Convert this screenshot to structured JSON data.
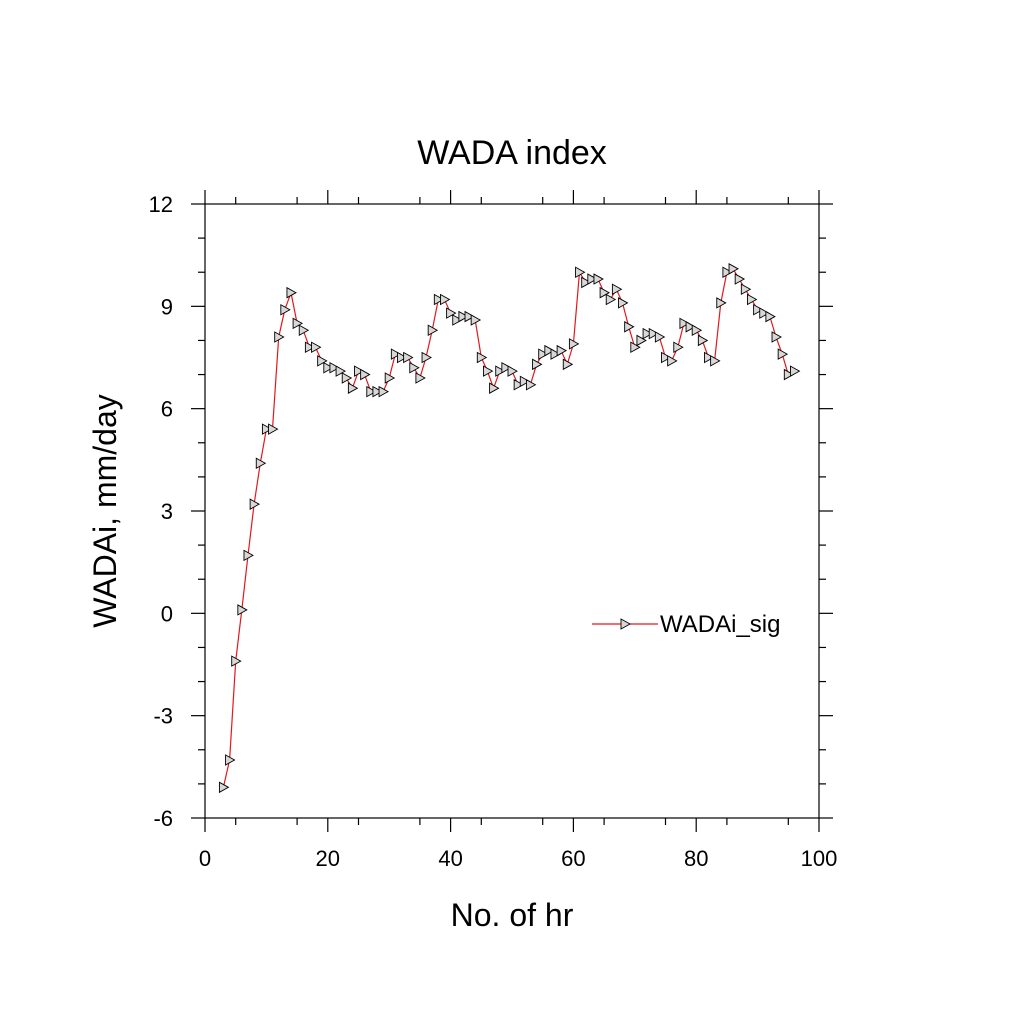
{
  "chart_data": {
    "type": "line",
    "title": "WADA index",
    "xlabel": "No. of hr",
    "ylabel": "WADAi, mm/day",
    "xlim": [
      0,
      100
    ],
    "ylim": [
      -6,
      12
    ],
    "x_ticks": [
      "0",
      "20",
      "40",
      "60",
      "80",
      "100"
    ],
    "y_ticks": [
      "-6",
      "-3",
      "0",
      "3",
      "6",
      "9",
      "12"
    ],
    "grid": false,
    "legend_position": "right-middle",
    "series": [
      {
        "name": "WADAi_sig",
        "color": "#e0191c",
        "marker": "right-triangle",
        "x": [
          3,
          4,
          5,
          6,
          7,
          8,
          9,
          10,
          11,
          12,
          13,
          14,
          15,
          16,
          17,
          18,
          19,
          20,
          21,
          22,
          23,
          24,
          25,
          26,
          27,
          28,
          29,
          30,
          31,
          32,
          33,
          34,
          35,
          36,
          37,
          38,
          39,
          40,
          41,
          42,
          43,
          44,
          45,
          46,
          47,
          48,
          49,
          50,
          51,
          52,
          53,
          54,
          55,
          56,
          57,
          58,
          59,
          60,
          61,
          62,
          63,
          64,
          65,
          66,
          67,
          68,
          69,
          70,
          71,
          72,
          73,
          74,
          75,
          76,
          77,
          78,
          79,
          80,
          81,
          82,
          83,
          84,
          85,
          86,
          87,
          88,
          89,
          90,
          91,
          92,
          93,
          94,
          95,
          96
        ],
        "y": [
          -5.1,
          -4.3,
          -1.4,
          0.1,
          1.7,
          3.2,
          4.4,
          5.4,
          5.4,
          8.1,
          8.9,
          9.4,
          8.5,
          8.3,
          7.8,
          7.8,
          7.4,
          7.2,
          7.2,
          7.1,
          6.9,
          6.6,
          7.1,
          7.0,
          6.5,
          6.5,
          6.5,
          6.9,
          7.6,
          7.5,
          7.5,
          7.2,
          6.9,
          7.5,
          8.3,
          9.2,
          9.2,
          8.8,
          8.6,
          8.7,
          8.7,
          8.6,
          7.5,
          7.1,
          6.6,
          7.1,
          7.2,
          7.1,
          6.7,
          6.8,
          6.7,
          7.3,
          7.6,
          7.7,
          7.6,
          7.7,
          7.3,
          7.9,
          10.0,
          9.7,
          9.8,
          9.8,
          9.4,
          9.2,
          9.5,
          9.1,
          8.4,
          7.8,
          8.0,
          8.2,
          8.2,
          8.1,
          7.5,
          7.4,
          7.8,
          8.5,
          8.4,
          8.3,
          8.0,
          7.5,
          7.4,
          9.1,
          10.0,
          10.1,
          9.8,
          9.5,
          9.2,
          8.9,
          8.8,
          8.7,
          8.1,
          7.6,
          7.0,
          7.1
        ]
      }
    ]
  }
}
